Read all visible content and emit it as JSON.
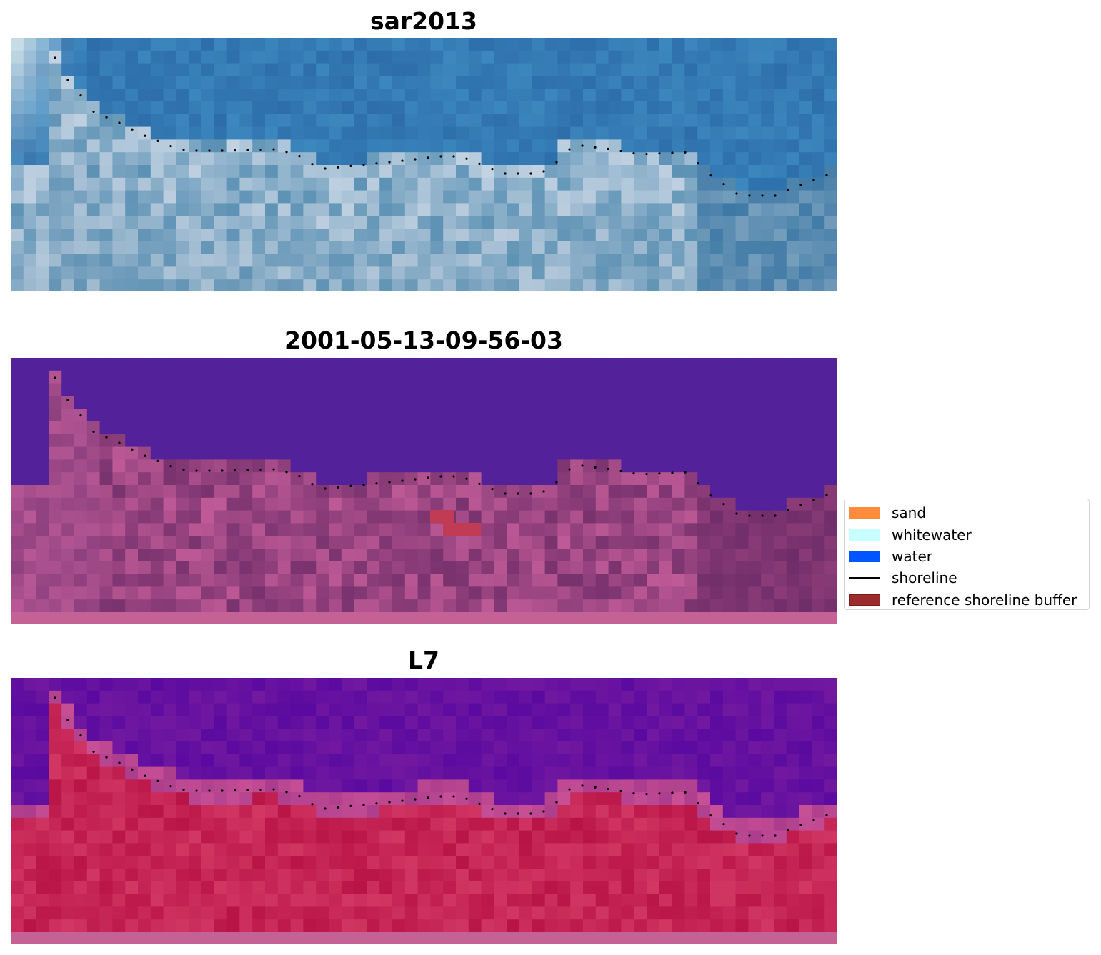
{
  "panels": [
    {
      "id": "rgb",
      "title": "sar2013"
    },
    {
      "id": "classified",
      "title": "2001-05-13-09-56-03"
    },
    {
      "id": "index",
      "title": "L7"
    }
  ],
  "legend": {
    "items": [
      {
        "label": "sand",
        "kind": "patch",
        "color": "#ff8c3c"
      },
      {
        "label": "whitewater",
        "kind": "patch",
        "color": "#c8ffff"
      },
      {
        "label": "water",
        "kind": "patch",
        "color": "#0055ff"
      },
      {
        "label": "shoreline",
        "kind": "line",
        "color": "#000000"
      },
      {
        "label": "reference shoreline buffer",
        "kind": "patch",
        "color": "#9c2c2c",
        "edge": "#7a1c1c"
      }
    ]
  },
  "colors": {
    "rgb_water": "#3573a8",
    "rgb_surf": "#d9e4f0",
    "classified_water": "#53229a",
    "classified_land": "#9c4f8c",
    "index_water": "#5b0aa0",
    "index_land": "#c02556",
    "reference_buffer": "#c13b55",
    "shoreline_dots": "#000000"
  }
}
